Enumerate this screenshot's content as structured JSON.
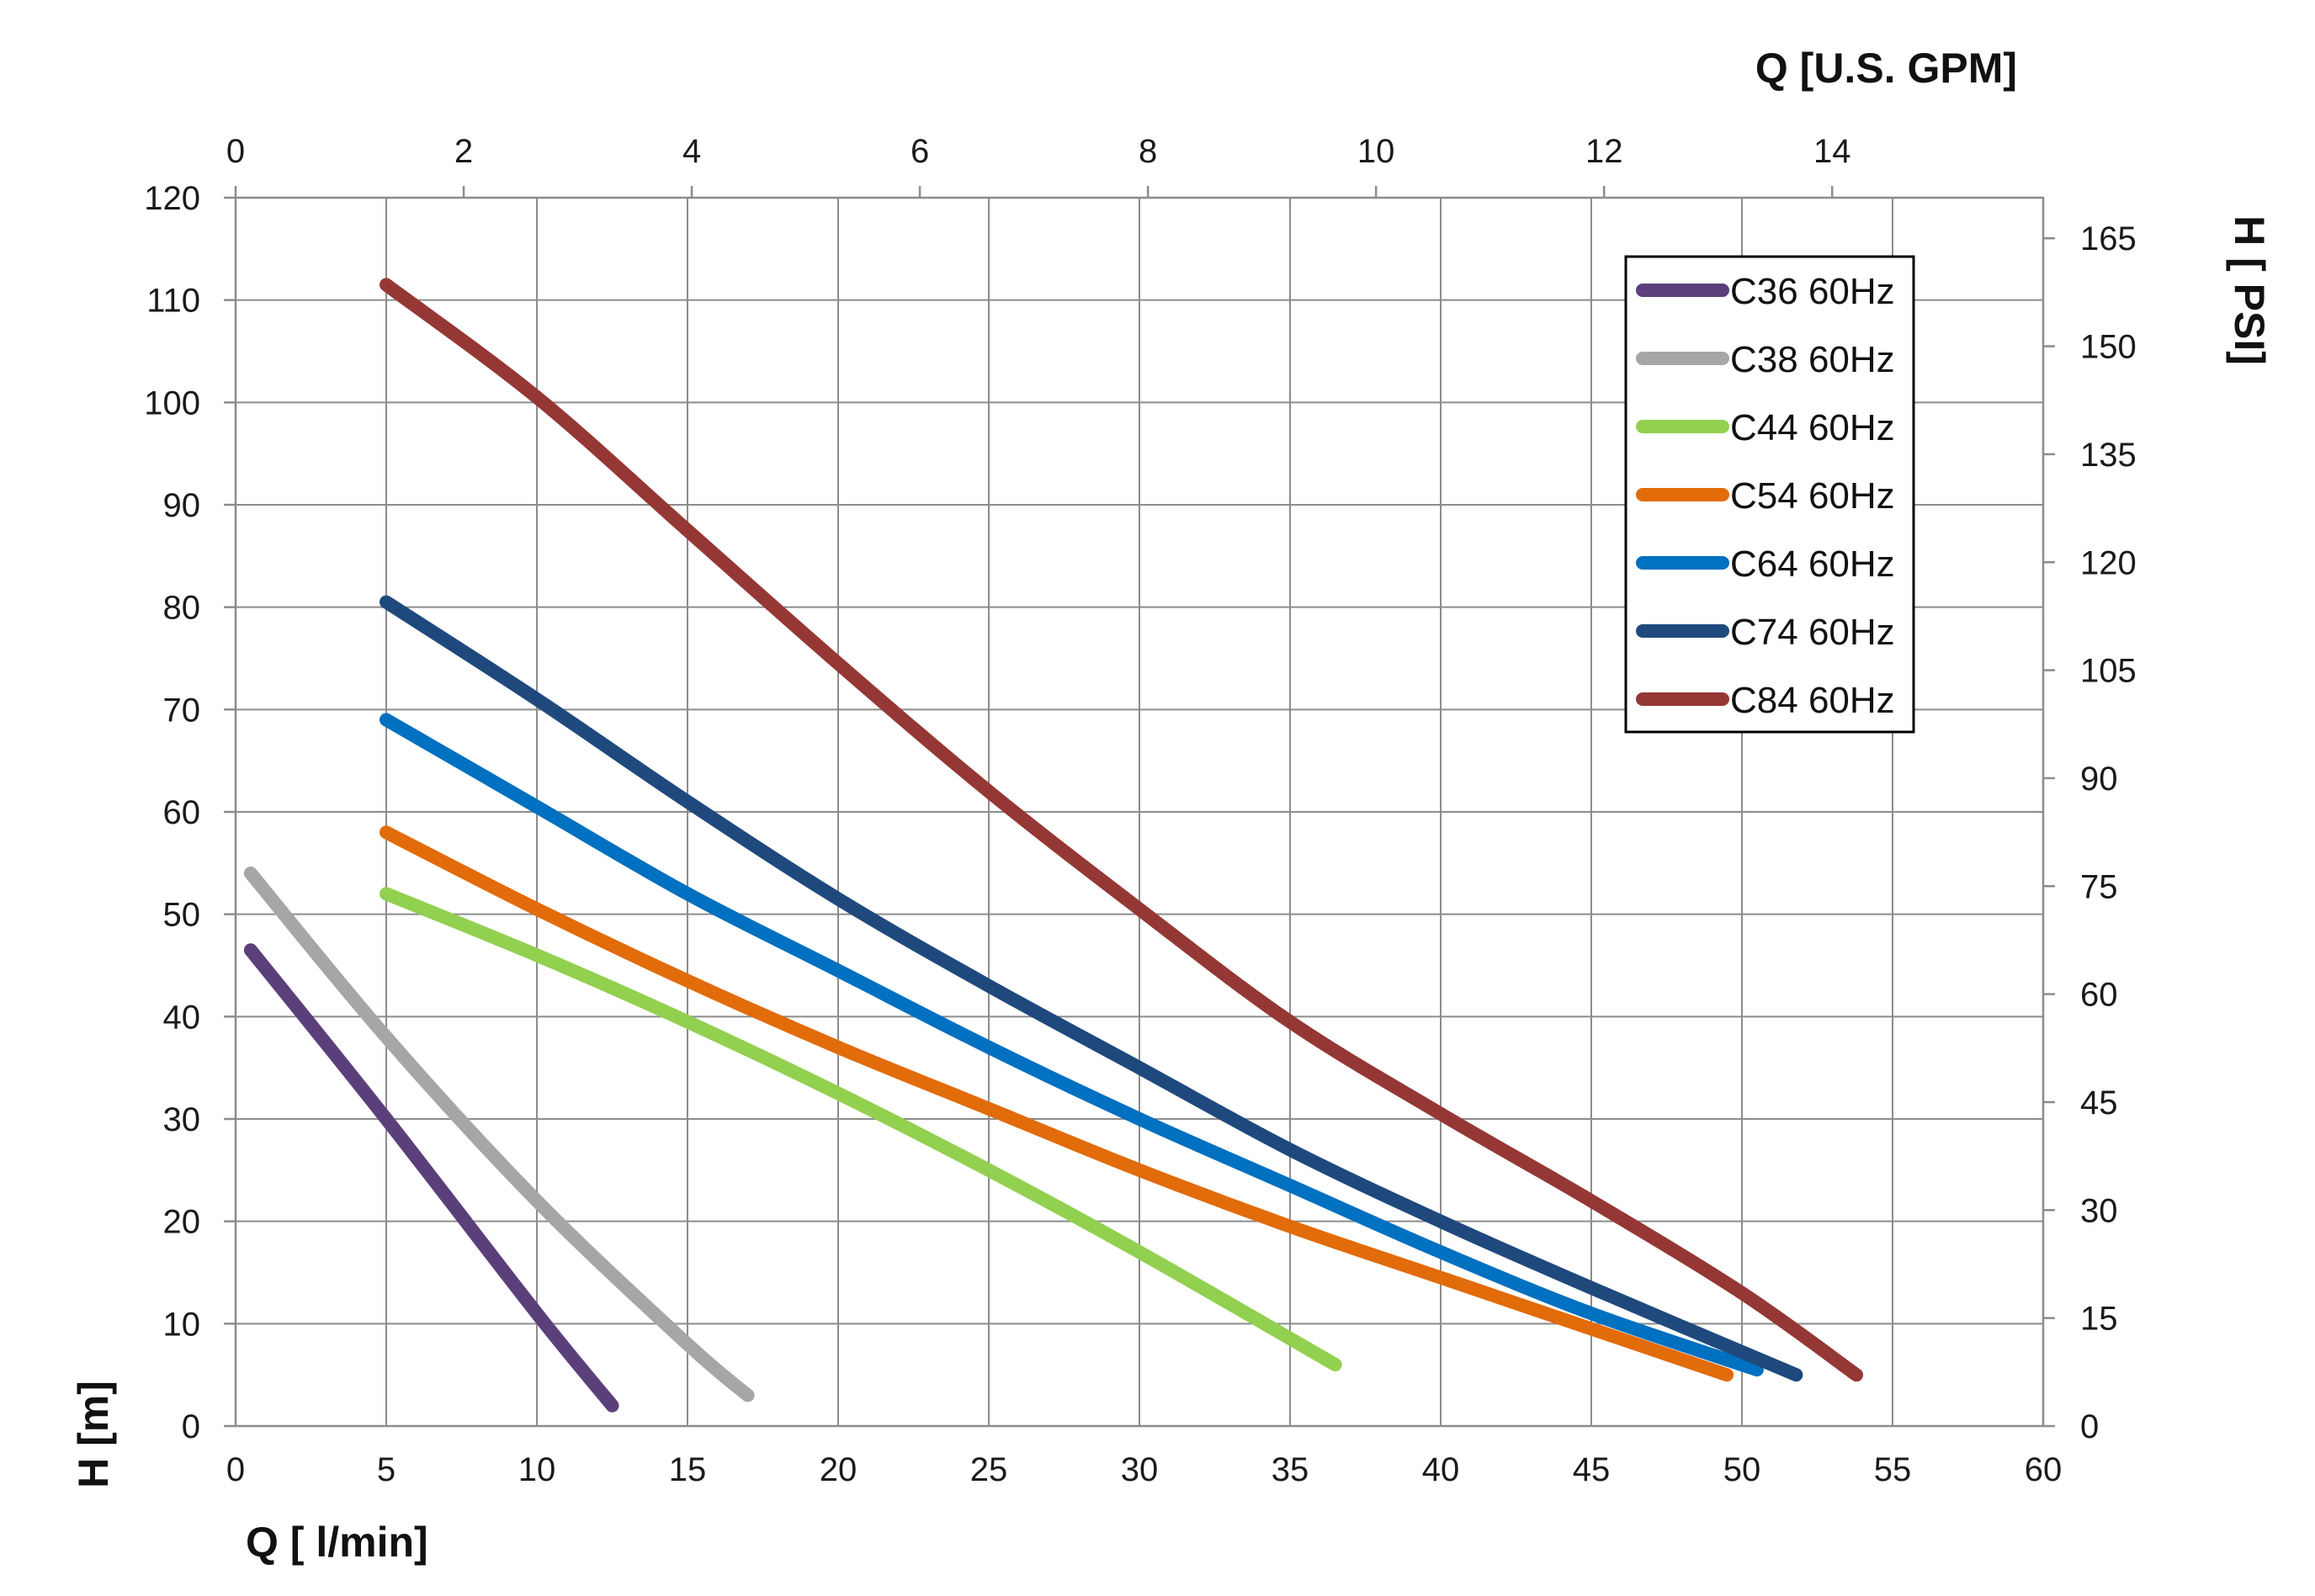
{
  "chart_data": {
    "type": "line",
    "xlabel": "Q [ l/min]",
    "x2label": "Q  [U.S. GPM]",
    "ylabel": "H [m]",
    "y2label": "H [ PSI]",
    "xlim": [
      0,
      60
    ],
    "ylim": [
      0,
      120
    ],
    "x_ticks": [
      "0",
      "5",
      "10",
      "15",
      "20",
      "25",
      "30",
      "35",
      "40",
      "45",
      "50",
      "55",
      "60"
    ],
    "y_ticks": [
      "0",
      "10",
      "20",
      "30",
      "40",
      "50",
      "60",
      "70",
      "80",
      "90",
      "100",
      "110",
      "120"
    ],
    "x2_ticks": [
      "0",
      "2",
      "4",
      "6",
      "8",
      "10",
      "12",
      "14"
    ],
    "y2_ticks": [
      "0",
      "15",
      "30",
      "45",
      "60",
      "75",
      "90",
      "105",
      "120",
      "135",
      "150",
      "165"
    ],
    "grid": true,
    "legend_position": "top-right",
    "series": [
      {
        "name": "C36 60Hz",
        "color": "#5b3f7a",
        "x": [
          0.5,
          5,
          10,
          12.5
        ],
        "y": [
          46.5,
          30,
          11,
          2
        ]
      },
      {
        "name": "C38 60Hz",
        "color": "#a6a6a6",
        "x": [
          0.5,
          5,
          10,
          15,
          17
        ],
        "y": [
          54,
          38,
          22,
          8,
          3
        ]
      },
      {
        "name": "C44 60Hz",
        "color": "#92d050",
        "x": [
          5,
          10,
          15,
          20,
          25,
          30,
          36.5
        ],
        "y": [
          52,
          46,
          39.5,
          32.5,
          25,
          17,
          6
        ]
      },
      {
        "name": "C54 60Hz",
        "color": "#e26b0a",
        "x": [
          5,
          10,
          15,
          20,
          25,
          30,
          35,
          40,
          45,
          49.5
        ],
        "y": [
          58,
          50.5,
          43.5,
          37,
          31,
          25,
          19.5,
          14.5,
          9.5,
          5
        ]
      },
      {
        "name": "C64 60Hz",
        "color": "#0070c0",
        "x": [
          5,
          10,
          15,
          20,
          25,
          30,
          35,
          40,
          45,
          50.5
        ],
        "y": [
          69,
          60.5,
          52,
          44.5,
          37,
          30,
          23.5,
          17,
          11,
          5.5
        ]
      },
      {
        "name": "C74 60Hz",
        "color": "#1f497d",
        "x": [
          5,
          10,
          15,
          20,
          25,
          30,
          35,
          40,
          45,
          51.8
        ],
        "y": [
          80.5,
          71,
          61,
          51.5,
          43,
          35,
          27,
          20,
          13.5,
          5
        ]
      },
      {
        "name": "C84 60Hz",
        "color": "#953735",
        "x": [
          5,
          10,
          15,
          20,
          25,
          30,
          35,
          40,
          45,
          50,
          53.8
        ],
        "y": [
          111.5,
          100.5,
          87.5,
          74.5,
          62,
          50.5,
          39.5,
          30.5,
          22,
          13,
          5
        ]
      }
    ]
  }
}
